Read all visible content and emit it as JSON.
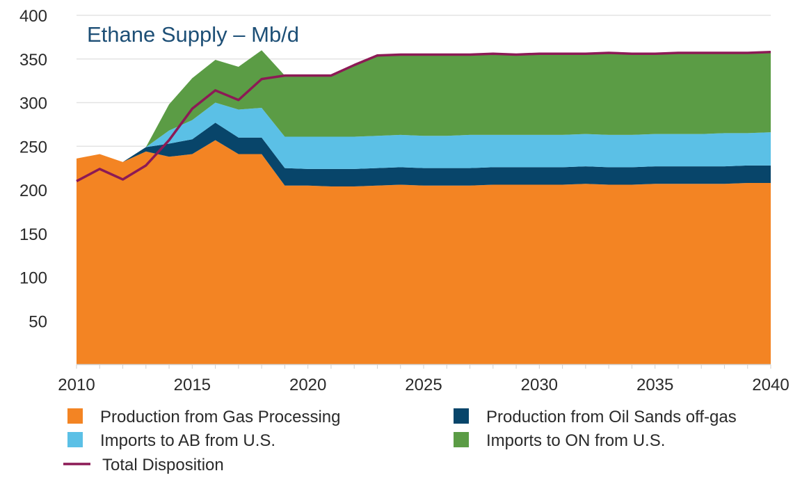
{
  "chart_data": {
    "type": "area",
    "stacked": true,
    "title": "Ethane Supply – Mb/d",
    "xlabel": "",
    "ylabel": "",
    "ylim": [
      0,
      400
    ],
    "xlim": [
      2010,
      2040
    ],
    "grid": true,
    "legend_position": "bottom",
    "yticks": [
      50,
      100,
      150,
      200,
      250,
      300,
      350,
      400
    ],
    "xticks": [
      2010,
      2015,
      2020,
      2025,
      2030,
      2035,
      2040
    ],
    "x": [
      2010,
      2011,
      2012,
      2013,
      2014,
      2015,
      2016,
      2017,
      2018,
      2019,
      2020,
      2021,
      2022,
      2023,
      2024,
      2025,
      2026,
      2027,
      2028,
      2029,
      2030,
      2031,
      2032,
      2033,
      2034,
      2035,
      2036,
      2037,
      2038,
      2039,
      2040
    ],
    "series": [
      {
        "name": "Production from Gas Processing",
        "color": "#f38423",
        "values": [
          236,
          241,
          232,
          244,
          238,
          241,
          257,
          241,
          241,
          205,
          205,
          204,
          204,
          205,
          206,
          205,
          205,
          205,
          206,
          206,
          206,
          206,
          207,
          206,
          206,
          207,
          207,
          207,
          207,
          208,
          208
        ]
      },
      {
        "name": "Production from Oil Sands off-gas",
        "color": "#08456a",
        "values": [
          0,
          0,
          0,
          5,
          15,
          17,
          20,
          19,
          19,
          20,
          19,
          20,
          20,
          20,
          20,
          20,
          20,
          20,
          20,
          20,
          20,
          20,
          20,
          20,
          20,
          20,
          20,
          20,
          20,
          20,
          20
        ]
      },
      {
        "name": "Imports to AB from U.S.",
        "color": "#5bc0e6",
        "values": [
          0,
          0,
          0,
          0,
          15,
          22,
          23,
          32,
          34,
          36,
          37,
          37,
          37,
          37,
          37,
          37,
          37,
          38,
          37,
          37,
          37,
          37,
          37,
          37,
          37,
          37,
          37,
          37,
          38,
          37,
          38
        ]
      },
      {
        "name": "Imports to ON from U.S.",
        "color": "#5b9c45",
        "values": [
          0,
          0,
          0,
          0,
          30,
          48,
          49,
          49,
          66,
          70,
          70,
          70,
          82,
          92,
          92,
          93,
          93,
          92,
          93,
          92,
          93,
          93,
          92,
          93,
          93,
          93,
          93,
          93,
          92,
          92,
          92
        ]
      }
    ],
    "lines": [
      {
        "name": "Total Disposition",
        "color": "#8c1a55",
        "values": [
          210,
          224,
          212,
          228,
          257,
          293,
          314,
          303,
          327,
          331,
          331,
          331,
          343,
          354,
          355,
          355,
          355,
          355,
          356,
          355,
          356,
          356,
          356,
          357,
          356,
          356,
          357,
          357,
          357,
          357,
          358
        ]
      }
    ]
  }
}
